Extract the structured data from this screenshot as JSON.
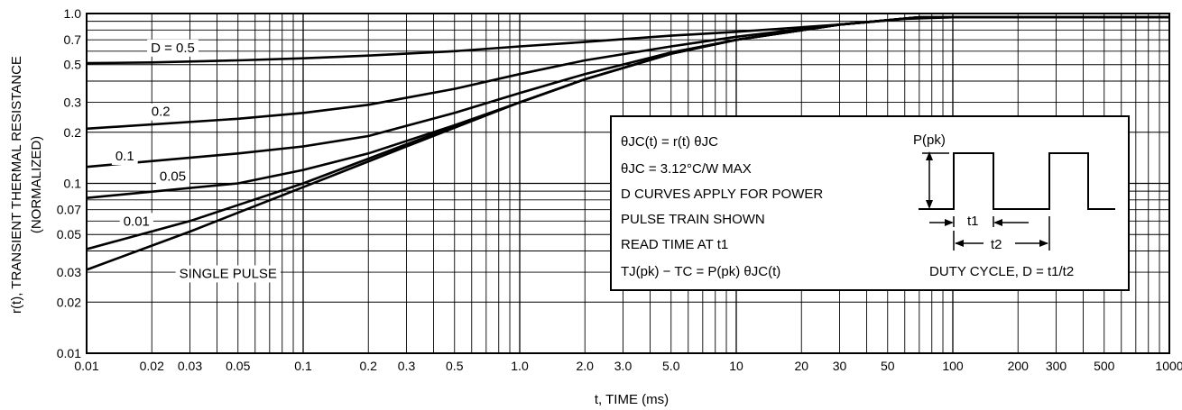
{
  "chart_data": {
    "type": "line",
    "x_scale": "log",
    "y_scale": "log",
    "xlim": [
      0.01,
      1000
    ],
    "ylim": [
      0.01,
      1.0
    ],
    "grid": true,
    "xlabel": "t, TIME (ms)",
    "ylabel_line1": "r(t), TRANSIENT THERMAL RESISTANCE",
    "ylabel_line2": "(NORMALIZED)",
    "x_ticks": [
      {
        "v": 0.01,
        "label": "0.01"
      },
      {
        "v": 0.02,
        "label": "0.02"
      },
      {
        "v": 0.03,
        "label": "0.03"
      },
      {
        "v": 0.05,
        "label": "0.05"
      },
      {
        "v": 0.1,
        "label": "0.1"
      },
      {
        "v": 0.2,
        "label": "0.2"
      },
      {
        "v": 0.3,
        "label": "0.3"
      },
      {
        "v": 0.5,
        "label": "0.5"
      },
      {
        "v": 1.0,
        "label": "1.0"
      },
      {
        "v": 2.0,
        "label": "2.0"
      },
      {
        "v": 3.0,
        "label": "3.0"
      },
      {
        "v": 5.0,
        "label": "5.0"
      },
      {
        "v": 10,
        "label": "10"
      },
      {
        "v": 20,
        "label": "20"
      },
      {
        "v": 30,
        "label": "30"
      },
      {
        "v": 50,
        "label": "50"
      },
      {
        "v": 100,
        "label": "100"
      },
      {
        "v": 200,
        "label": "200"
      },
      {
        "v": 300,
        "label": "300"
      },
      {
        "v": 500,
        "label": "500"
      },
      {
        "v": 1000,
        "label": "1000"
      }
    ],
    "y_ticks": [
      {
        "v": 1.0,
        "label": "1.0"
      },
      {
        "v": 0.7,
        "label": "0.7"
      },
      {
        "v": 0.5,
        "label": "0.5"
      },
      {
        "v": 0.3,
        "label": "0.3"
      },
      {
        "v": 0.2,
        "label": "0.2"
      },
      {
        "v": 0.1,
        "label": "0.1"
      },
      {
        "v": 0.07,
        "label": "0.07"
      },
      {
        "v": 0.05,
        "label": "0.05"
      },
      {
        "v": 0.03,
        "label": "0.03"
      },
      {
        "v": 0.02,
        "label": "0.02"
      },
      {
        "v": 0.01,
        "label": "0.01"
      }
    ],
    "series": [
      {
        "name": "D = 0.5",
        "x": [
          0.01,
          0.02,
          0.05,
          0.1,
          0.2,
          0.5,
          1,
          2,
          5,
          10,
          30,
          60,
          100,
          1000
        ],
        "y": [
          0.51,
          0.515,
          0.53,
          0.545,
          0.565,
          0.6,
          0.64,
          0.68,
          0.74,
          0.78,
          0.86,
          0.93,
          0.95,
          0.95
        ]
      },
      {
        "name": "0.2",
        "x": [
          0.01,
          0.05,
          0.1,
          0.2,
          0.5,
          1,
          2,
          5,
          10,
          30,
          70,
          100,
          1000
        ],
        "y": [
          0.21,
          0.24,
          0.26,
          0.29,
          0.36,
          0.44,
          0.53,
          0.64,
          0.73,
          0.86,
          0.95,
          0.95,
          0.95
        ]
      },
      {
        "name": "0.1",
        "x": [
          0.01,
          0.05,
          0.1,
          0.2,
          0.5,
          1,
          2,
          5,
          10,
          30,
          70,
          100,
          1000
        ],
        "y": [
          0.125,
          0.15,
          0.165,
          0.19,
          0.26,
          0.34,
          0.44,
          0.59,
          0.7,
          0.86,
          0.95,
          0.95,
          0.95
        ]
      },
      {
        "name": "0.05",
        "x": [
          0.01,
          0.05,
          0.1,
          0.2,
          0.5,
          1,
          2,
          5,
          10,
          30,
          70,
          100,
          1000
        ],
        "y": [
          0.082,
          0.1,
          0.12,
          0.15,
          0.22,
          0.3,
          0.41,
          0.58,
          0.7,
          0.86,
          0.95,
          0.95,
          0.95
        ]
      },
      {
        "name": "0.01",
        "x": [
          0.01,
          0.03,
          0.1,
          0.3,
          1,
          2,
          5,
          10,
          30,
          70,
          100,
          1000
        ],
        "y": [
          0.041,
          0.06,
          0.1,
          0.17,
          0.3,
          0.41,
          0.58,
          0.7,
          0.86,
          0.95,
          0.95,
          0.95
        ]
      },
      {
        "name": "SINGLE PULSE",
        "x": [
          0.01,
          0.03,
          0.1,
          0.3,
          1,
          2,
          5,
          10,
          30,
          70,
          100,
          1000
        ],
        "y": [
          0.031,
          0.052,
          0.095,
          0.165,
          0.3,
          0.41,
          0.58,
          0.7,
          0.86,
          0.95,
          0.95,
          0.95
        ]
      }
    ],
    "curve_labels": [
      {
        "text": "D = 0.5",
        "x": 0.025,
        "y": 0.63
      },
      {
        "text": "0.2",
        "x": 0.022,
        "y": 0.265
      },
      {
        "text": "0.1",
        "x": 0.015,
        "y": 0.145
      },
      {
        "text": "0.05",
        "x": 0.025,
        "y": 0.11
      },
      {
        "text": "0.01",
        "x": 0.017,
        "y": 0.06
      },
      {
        "text": "SINGLE PULSE",
        "x": 0.045,
        "y": 0.0295
      }
    ],
    "notes": {
      "line1": "θJC(t) = r(t) θJC",
      "line2": "θJC = 3.12°C/W MAX",
      "line3": "D CURVES APPLY FOR POWER",
      "line4": "PULSE TRAIN SHOWN",
      "line5": "READ TIME AT t1",
      "line6": "TJ(pk) − TC = P(pk) θJC(t)",
      "pk_label": "P(pk)",
      "t1_label": "t1",
      "t2_label": "t2",
      "duty": "DUTY CYCLE, D = t1/t2"
    }
  }
}
